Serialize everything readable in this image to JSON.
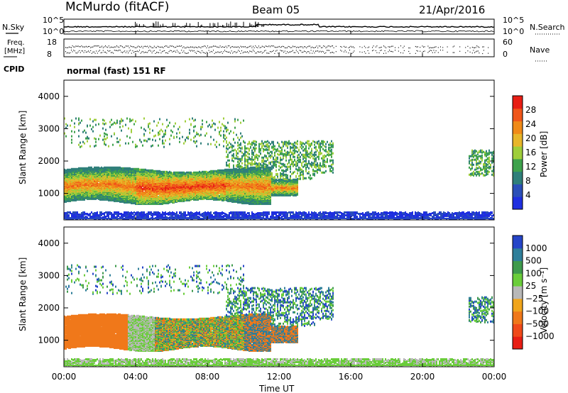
{
  "header": {
    "title": "McMurdo (fitACF)",
    "beam": "Beam 05",
    "date": "21/Apr/2016"
  },
  "top_panels": {
    "nsky_label": "N.Sky",
    "nsky_tick_hi": "10^5",
    "nsky_tick_lo": "10^0",
    "nsearch_label": "N.Search",
    "nsearch_tick_hi": "10^5",
    "nsearch_tick_lo": "10^0",
    "freq_label_1": "Freq.",
    "freq_label_2": "[MHz]",
    "freq_tick_hi": "18",
    "freq_tick_lo": "8",
    "nave_label": "Nave",
    "nave_tick_hi": "60",
    "nave_tick_lo": "0",
    "cpid_label": "CPID",
    "cpid_value": "normal (fast) 151 RF"
  },
  "colors": {
    "power_scale": [
      "#1f2fe0",
      "#2b4fb8",
      "#2f7f7a",
      "#3ea24c",
      "#9fce3a",
      "#e7b62a",
      "#f08a18",
      "#f0561a",
      "#e81e14"
    ],
    "velocity_scale": [
      "#e81e14",
      "#f04a1a",
      "#f0781a",
      "#f0a51c",
      "#b8b8b8",
      "#6acd3a",
      "#3e9a4c",
      "#2f7f9a",
      "#2545c8"
    ]
  },
  "chart_data": [
    {
      "type": "heatmap",
      "title": "Power",
      "ylabel": "Slant Range [km]",
      "xlabel": "Time UT",
      "x_ticks": [
        "00:00",
        "04:00",
        "08:00",
        "12:00",
        "16:00",
        "20:00",
        "00:00"
      ],
      "x_range_hours": [
        0,
        24
      ],
      "y_ticks": [
        "1000",
        "2000",
        "3000",
        "4000"
      ],
      "ylim": [
        180,
        4500
      ],
      "colorbar": {
        "label": "Power [dB]",
        "ticks": [
          "4",
          "8",
          "12",
          "16",
          "20",
          "24",
          "28"
        ],
        "range": [
          0,
          30
        ]
      }
    },
    {
      "type": "heatmap",
      "title": "Velocity",
      "ylabel": "Slant Range [km]",
      "xlabel": "Time UT",
      "x_ticks": [
        "00:00",
        "04:00",
        "08:00",
        "12:00",
        "16:00",
        "20:00",
        "00:00"
      ],
      "x_range_hours": [
        0,
        24
      ],
      "y_ticks": [
        "1000",
        "2000",
        "3000",
        "4000"
      ],
      "ylim": [
        180,
        4500
      ],
      "colorbar": {
        "label": "Velocity [m s⁻¹]",
        "ticks": [
          "1000",
          "500",
          "100",
          "25",
          "−25",
          "−100",
          "−500",
          "−1000"
        ]
      }
    }
  ]
}
